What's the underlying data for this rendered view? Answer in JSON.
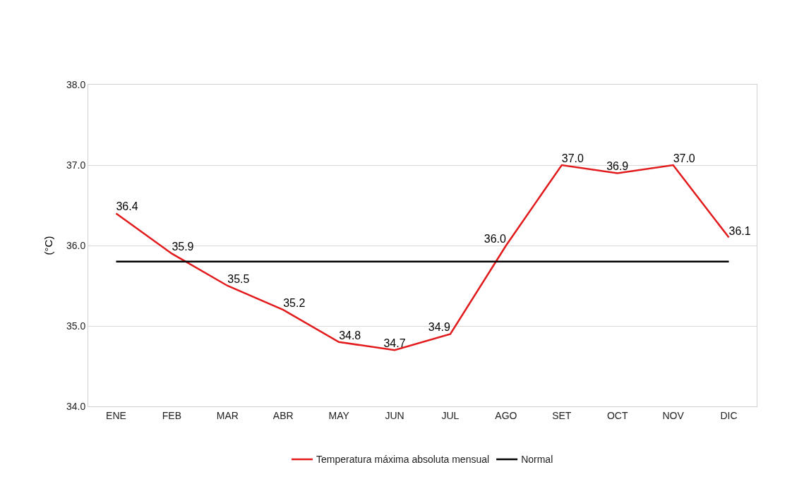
{
  "chart_data": {
    "type": "line",
    "ylabel": "(°C)",
    "categories": [
      "ENE",
      "FEB",
      "MAR",
      "ABR",
      "MAY",
      "JUN",
      "JUL",
      "AGO",
      "SET",
      "OCT",
      "NOV",
      "DIC"
    ],
    "series": [
      {
        "name": "Temperatura máxima absoluta mensual",
        "color": "#e31a1c",
        "values": [
          36.4,
          35.9,
          35.5,
          35.2,
          34.8,
          34.7,
          34.9,
          36.0,
          37.0,
          36.9,
          37.0,
          36.1
        ],
        "value_labels": [
          "36.4",
          "35.9",
          "35.5",
          "35.2",
          "34.8",
          "34.7",
          "34.9",
          "36.0",
          "37.0",
          "36.9",
          "37.0",
          "36.1"
        ]
      },
      {
        "name": "Normal",
        "color": "#000000",
        "values": [
          35.8,
          35.8,
          35.8,
          35.8,
          35.8,
          35.8,
          35.8,
          35.8,
          35.8,
          35.8,
          35.8,
          35.8
        ]
      }
    ],
    "ylim": [
      34,
      38
    ],
    "yticks": [
      {
        "value": 34,
        "label": "34.0"
      },
      {
        "value": 35,
        "label": "35.0"
      },
      {
        "value": 36,
        "label": "36.0"
      },
      {
        "value": 37,
        "label": "37.0"
      },
      {
        "value": 38,
        "label": "38.0"
      }
    ],
    "grid": "y",
    "legend": "bottom",
    "marker": "none",
    "line_style": "solid"
  }
}
